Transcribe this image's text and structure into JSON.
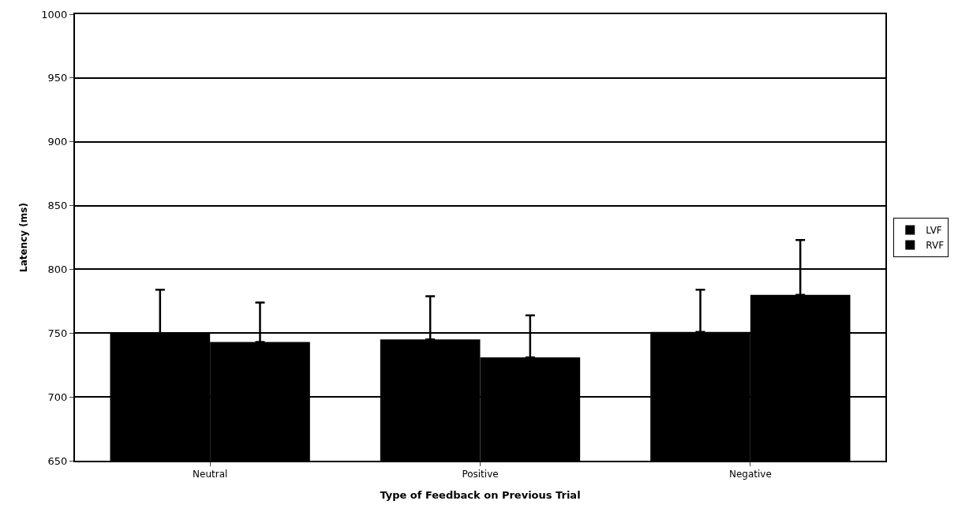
{
  "chart_data": {
    "type": "bar",
    "xlabel": "Type of Feedback on Previous Trial",
    "ylabel": "Latency (ms)",
    "categories": [
      "Neutral",
      "Positive",
      "Negative"
    ],
    "series": [
      {
        "name": "LVF",
        "color": "#000000",
        "values": [
          750,
          745,
          751
        ],
        "errors": [
          [
            750,
            784
          ],
          [
            745,
            779
          ],
          [
            751,
            784
          ]
        ]
      },
      {
        "name": "RVF",
        "color": "#000000",
        "values": [
          743,
          731,
          780
        ],
        "errors": [
          [
            743,
            774
          ],
          [
            731,
            764
          ],
          [
            780,
            823
          ]
        ]
      }
    ],
    "ylim": [
      650,
      1000
    ],
    "yticks": [
      650,
      700,
      750,
      800,
      850,
      900,
      950,
      1000
    ],
    "grid": "y",
    "legend": "right"
  }
}
